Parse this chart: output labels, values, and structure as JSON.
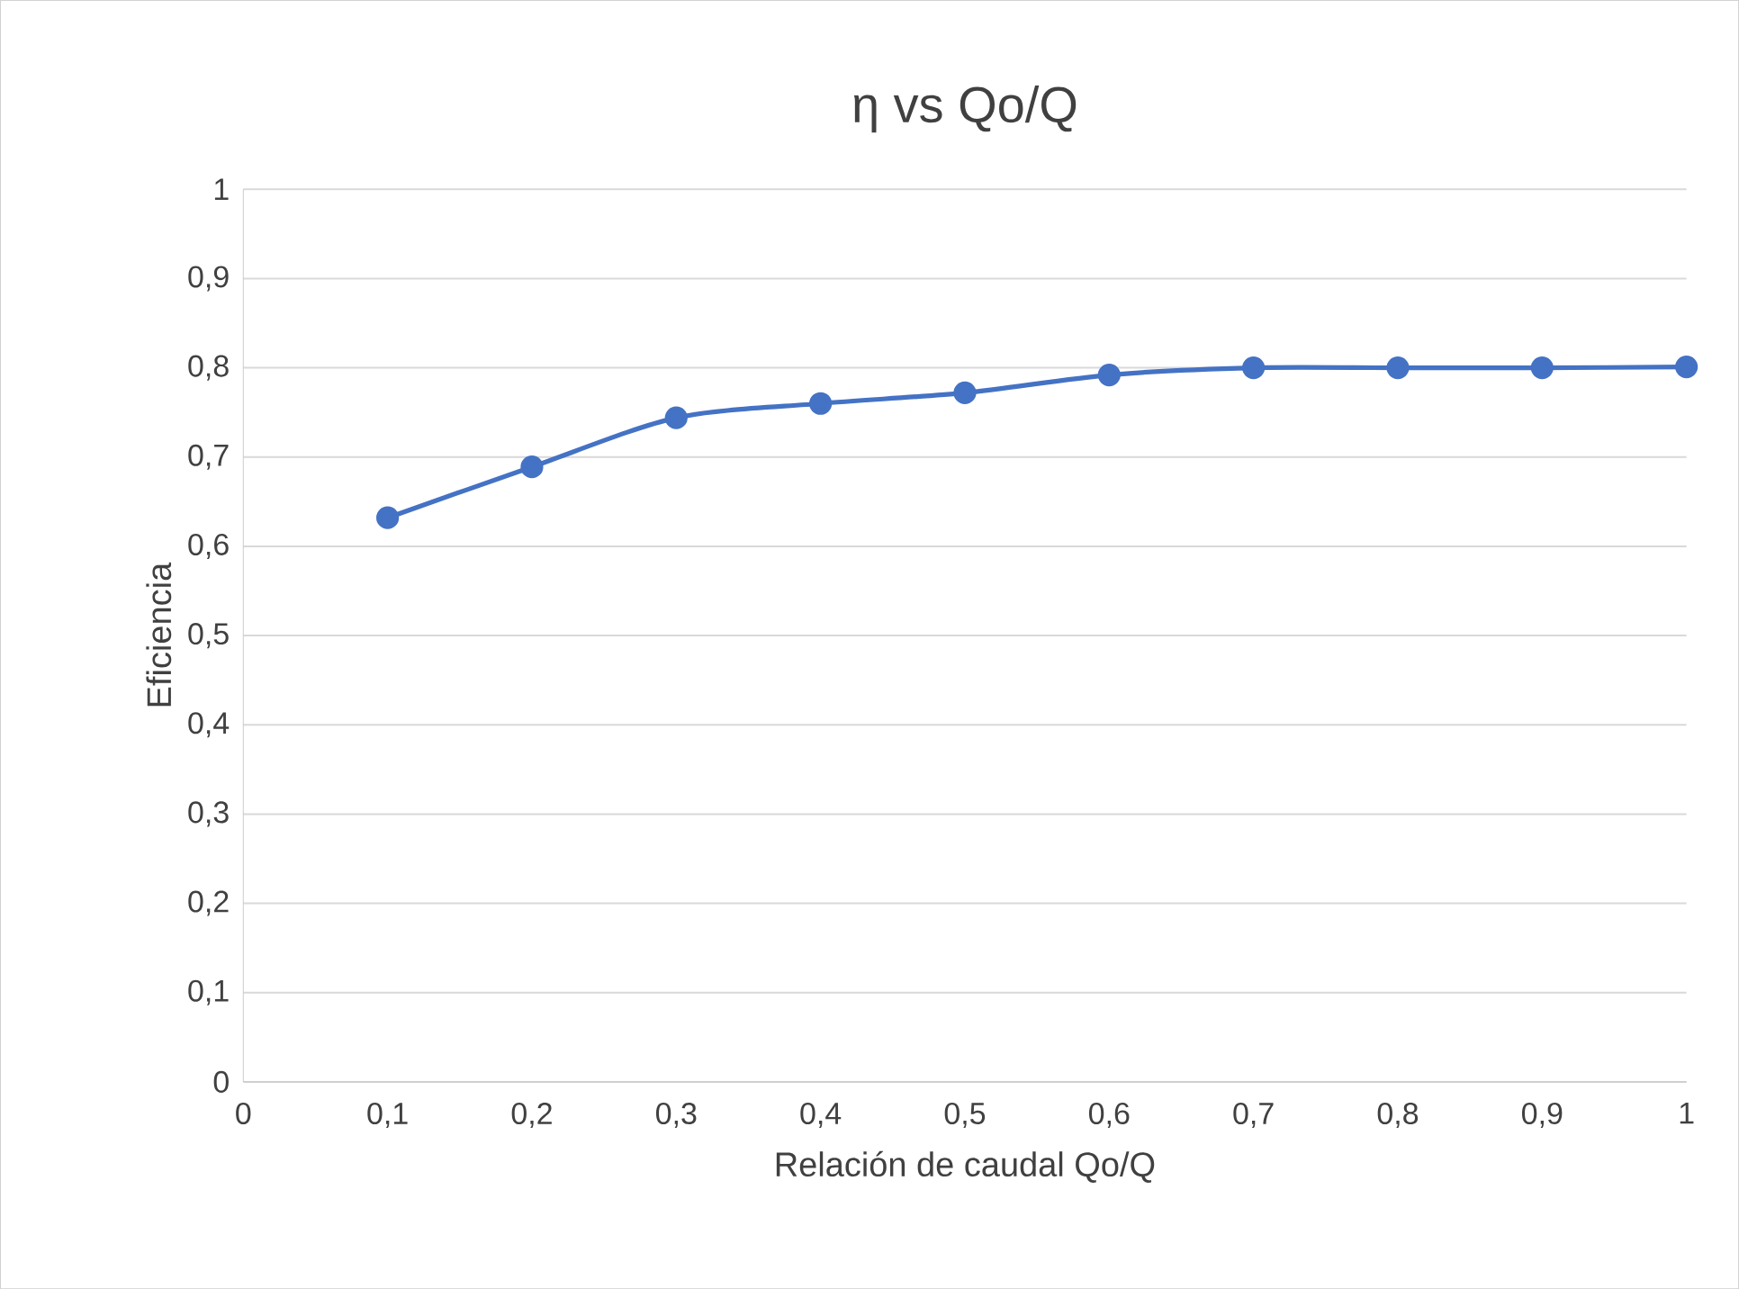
{
  "chart_data": {
    "type": "line",
    "title": "η vs Qo/Q",
    "xlabel": "Relación de caudal Qo/Q",
    "ylabel": "Eficiencia",
    "x": [
      0.1,
      0.2,
      0.3,
      0.4,
      0.5,
      0.6,
      0.7,
      0.8,
      0.9,
      1
    ],
    "series": [
      {
        "color": "#4472c4",
        "values": [
          0.632,
          0.689,
          0.744,
          0.76,
          0.772,
          0.792,
          0.8,
          0.8,
          0.8,
          0.801
        ]
      }
    ],
    "xlim": [
      0,
      1
    ],
    "ylim": [
      0,
      1
    ],
    "xticks": [
      {
        "value": 0,
        "label": "0"
      },
      {
        "value": 0.1,
        "label": "0,1"
      },
      {
        "value": 0.2,
        "label": "0,2"
      },
      {
        "value": 0.3,
        "label": "0,3"
      },
      {
        "value": 0.4,
        "label": "0,4"
      },
      {
        "value": 0.5,
        "label": "0,5"
      },
      {
        "value": 0.6,
        "label": "0,6"
      },
      {
        "value": 0.7,
        "label": "0,7"
      },
      {
        "value": 0.8,
        "label": "0,8"
      },
      {
        "value": 0.9,
        "label": "0,9"
      },
      {
        "value": 1,
        "label": "1"
      }
    ],
    "yticks": [
      {
        "value": 0,
        "label": "0"
      },
      {
        "value": 0.1,
        "label": "0,1"
      },
      {
        "value": 0.2,
        "label": "0,2"
      },
      {
        "value": 0.3,
        "label": "0,3"
      },
      {
        "value": 0.4,
        "label": "0,4"
      },
      {
        "value": 0.5,
        "label": "0,5"
      },
      {
        "value": 0.6,
        "label": "0,6"
      },
      {
        "value": 0.7,
        "label": "0,7"
      },
      {
        "value": 0.8,
        "label": "0,8"
      },
      {
        "value": 0.9,
        "label": "0,9"
      },
      {
        "value": 1,
        "label": "1"
      }
    ],
    "grid": "y",
    "marker": "circle",
    "line_style": "solid"
  }
}
